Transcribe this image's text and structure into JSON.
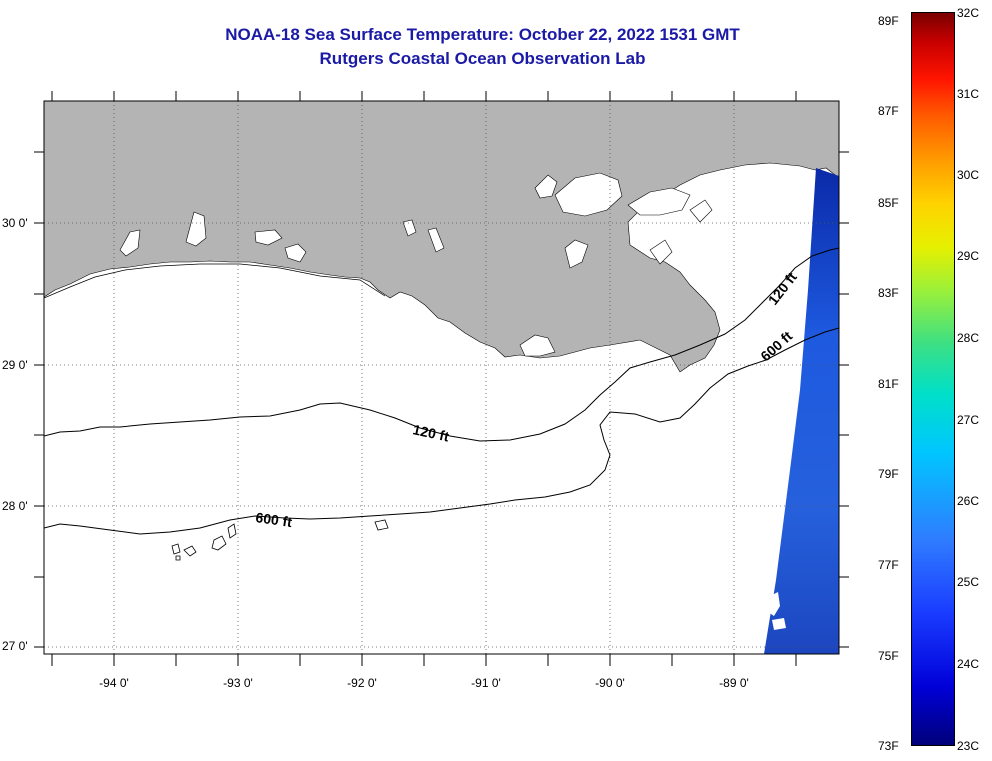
{
  "header": {
    "title": "NOAA-18 Sea Surface Temperature:  October 22, 2022 1531 GMT",
    "subtitle": "Rutgers Coastal Ocean Observation Lab"
  },
  "map": {
    "lat_labels": [
      "30 0'",
      "29 0'",
      "28 0'",
      "27 0'"
    ],
    "lon_labels": [
      "-94 0'",
      "-93 0'",
      "-92 0'",
      "-91 0'",
      "-90 0'",
      "-89 0'"
    ],
    "contours": [
      {
        "label": "120 ft"
      },
      {
        "label": "600 ft"
      },
      {
        "label": "120 ft"
      },
      {
        "label": "600 ft"
      }
    ],
    "colors": {
      "land": "#b4b4b4",
      "ocean": "#ffffff",
      "sst_swath": "#1f55d8",
      "contour": "#000000"
    }
  },
  "colorbar": {
    "fahrenheit": [
      "89F",
      "87F",
      "85F",
      "83F",
      "81F",
      "79F",
      "77F",
      "75F",
      "73F"
    ],
    "celsius": [
      "32C",
      "31C",
      "30C",
      "29C",
      "28C",
      "27C",
      "26C",
      "25C",
      "24C",
      "23C"
    ]
  }
}
